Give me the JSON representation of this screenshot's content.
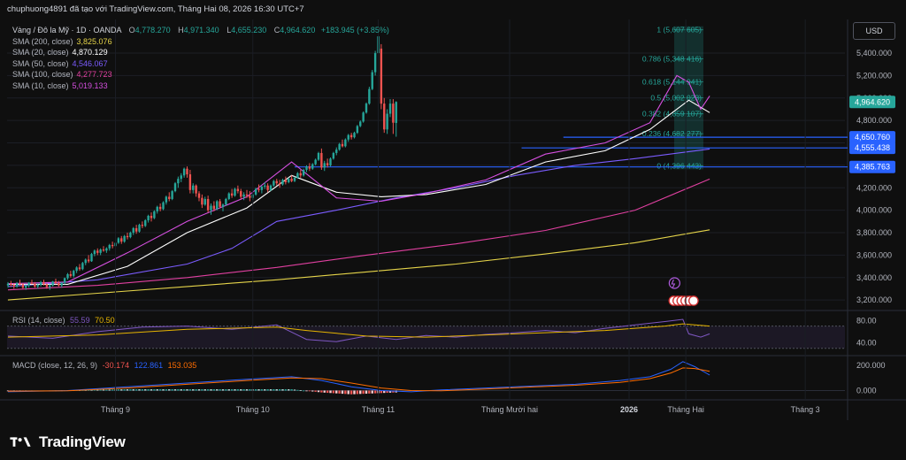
{
  "header": {
    "text": "chuphuong4891 đã tạo với TradingView.com, Tháng Hai 08, 2026 16:30 UTC+7"
  },
  "symbol": {
    "name": "Vàng / Đô la Mỹ · 1D · OANDA",
    "o_label": "O",
    "o": "4,778.270",
    "h_label": "H",
    "h": "4,971.340",
    "l_label": "L",
    "l": "4,655.230",
    "c_label": "C",
    "c": "4,964.620",
    "change": "+183.945 (+3.85%)"
  },
  "sma_legend": [
    {
      "label": "SMA (200, close)",
      "value": "3,825.076",
      "color": "#e5d44a"
    },
    {
      "label": "SMA (20, close)",
      "value": "4,870.129",
      "color": "#ffffff"
    },
    {
      "label": "SMA (50, close)",
      "value": "4,546.067",
      "color": "#7b5cff"
    },
    {
      "label": "SMA (100, close)",
      "value": "4,277.723",
      "color": "#e040a0"
    },
    {
      "label": "SMA (10, close)",
      "value": "5,019.133",
      "color": "#d64fe0"
    }
  ],
  "currency_button": "USD",
  "colors": {
    "up": "#26a69a",
    "down": "#ef5350",
    "fib": "#26a69a",
    "hline": "#2962ff",
    "rsi": "#7e57c2",
    "rsi_ma": "#e5b400",
    "macd": "#2962ff",
    "signal": "#ff6d00"
  },
  "chart_data": {
    "type": "candlestick",
    "title": "Vàng / Đô la Mỹ · 1D · OANDA",
    "x_ticks": [
      "Tháng 9",
      "Tháng 10",
      "Tháng 11",
      "Tháng Mười hai",
      "2026",
      "Tháng Hai",
      "Tháng 3"
    ],
    "y_ticks": [
      "5,400.000",
      "5,200.000",
      "5,000.000",
      "4,800.000",
      "4,600.000",
      "4,400.000",
      "4,200.000",
      "4,000.000",
      "3,800.000",
      "3,600.000",
      "3,400.000",
      "3,200.000"
    ],
    "ylim": [
      3130,
      5700
    ],
    "price_axis_tags": [
      {
        "value": "4,964.620",
        "price": 4964.62,
        "kind": "last"
      },
      {
        "value": "4,650.760",
        "price": 4650.76,
        "kind": "hline"
      },
      {
        "value": "4,555.438",
        "price": 4555.44,
        "kind": "hline"
      },
      {
        "value": "4,385.763",
        "price": 4385.76,
        "kind": "hline"
      }
    ],
    "fib_levels": [
      {
        "label": "1 (5,607.605)",
        "price": 5607.605
      },
      {
        "label": "0.786 (5,348.416)",
        "price": 5348.416
      },
      {
        "label": "0.618 (5,144.941)",
        "price": 5144.941
      },
      {
        "label": "0.5 (5,002.023)",
        "price": 5002.023
      },
      {
        "label": "0.382 (4,859.107)",
        "price": 4859.107
      },
      {
        "label": "0.236 (4,682.277)",
        "price": 4682.277
      },
      {
        "label": "0 (4,396.443)",
        "price": 4396.443
      }
    ],
    "sma200": [
      [
        0,
        3200
      ],
      [
        30,
        3260
      ],
      [
        60,
        3320
      ],
      [
        90,
        3380
      ],
      [
        120,
        3450
      ],
      [
        150,
        3520
      ],
      [
        180,
        3610
      ],
      [
        210,
        3710
      ],
      [
        235,
        3825
      ]
    ],
    "sma100": [
      [
        0,
        3290
      ],
      [
        30,
        3330
      ],
      [
        60,
        3400
      ],
      [
        90,
        3490
      ],
      [
        120,
        3600
      ],
      [
        150,
        3700
      ],
      [
        180,
        3820
      ],
      [
        210,
        4000
      ],
      [
        235,
        4278
      ]
    ],
    "sma50": [
      [
        0,
        3320
      ],
      [
        30,
        3380
      ],
      [
        60,
        3520
      ],
      [
        75,
        3660
      ],
      [
        90,
        3900
      ],
      [
        110,
        4000
      ],
      [
        130,
        4110
      ],
      [
        150,
        4200
      ],
      [
        170,
        4310
      ],
      [
        190,
        4400
      ],
      [
        210,
        4460
      ],
      [
        235,
        4546
      ]
    ],
    "sma20": [
      [
        0,
        3340
      ],
      [
        20,
        3340
      ],
      [
        40,
        3500
      ],
      [
        60,
        3800
      ],
      [
        80,
        4020
      ],
      [
        95,
        4310
      ],
      [
        110,
        4160
      ],
      [
        125,
        4120
      ],
      [
        140,
        4140
      ],
      [
        160,
        4230
      ],
      [
        180,
        4430
      ],
      [
        200,
        4530
      ],
      [
        215,
        4720
      ],
      [
        228,
        4980
      ],
      [
        235,
        4870
      ]
    ],
    "sma10": [
      [
        0,
        3345
      ],
      [
        20,
        3360
      ],
      [
        40,
        3620
      ],
      [
        60,
        3900
      ],
      [
        80,
        4120
      ],
      [
        95,
        4430
      ],
      [
        110,
        4110
      ],
      [
        125,
        4080
      ],
      [
        140,
        4150
      ],
      [
        160,
        4270
      ],
      [
        180,
        4500
      ],
      [
        200,
        4600
      ],
      [
        215,
        4780
      ],
      [
        224,
        5200
      ],
      [
        228,
        5140
      ],
      [
        232,
        4900
      ],
      [
        235,
        5019
      ]
    ],
    "candles": [
      [
        3330,
        3360,
        3310,
        3345
      ],
      [
        3345,
        3370,
        3320,
        3335
      ],
      [
        3335,
        3350,
        3300,
        3320
      ],
      [
        3320,
        3360,
        3310,
        3350
      ],
      [
        3350,
        3380,
        3330,
        3340
      ],
      [
        3340,
        3350,
        3300,
        3310
      ],
      [
        3310,
        3340,
        3290,
        3330
      ],
      [
        3330,
        3360,
        3310,
        3355
      ],
      [
        3355,
        3380,
        3340,
        3345
      ],
      [
        3345,
        3360,
        3310,
        3320
      ],
      [
        3320,
        3350,
        3300,
        3335
      ],
      [
        3335,
        3370,
        3320,
        3360
      ],
      [
        3360,
        3380,
        3330,
        3340
      ],
      [
        3340,
        3350,
        3300,
        3315
      ],
      [
        3315,
        3340,
        3290,
        3330
      ],
      [
        3330,
        3370,
        3320,
        3365
      ],
      [
        3365,
        3390,
        3340,
        3350
      ],
      [
        3350,
        3370,
        3320,
        3330
      ],
      [
        3330,
        3360,
        3310,
        3355
      ],
      [
        3355,
        3400,
        3340,
        3395
      ],
      [
        3395,
        3440,
        3380,
        3430
      ],
      [
        3430,
        3460,
        3400,
        3415
      ],
      [
        3415,
        3470,
        3400,
        3460
      ],
      [
        3460,
        3500,
        3440,
        3490
      ],
      [
        3490,
        3520,
        3460,
        3475
      ],
      [
        3475,
        3540,
        3465,
        3530
      ],
      [
        3530,
        3570,
        3510,
        3560
      ],
      [
        3560,
        3600,
        3530,
        3545
      ],
      [
        3545,
        3620,
        3540,
        3610
      ],
      [
        3610,
        3650,
        3590,
        3640
      ],
      [
        3640,
        3660,
        3600,
        3620
      ],
      [
        3620,
        3660,
        3600,
        3650
      ],
      [
        3650,
        3680,
        3630,
        3640
      ],
      [
        3640,
        3670,
        3620,
        3660
      ],
      [
        3660,
        3700,
        3640,
        3690
      ],
      [
        3690,
        3720,
        3660,
        3680
      ],
      [
        3680,
        3720,
        3670,
        3710
      ],
      [
        3710,
        3760,
        3700,
        3750
      ],
      [
        3750,
        3770,
        3700,
        3720
      ],
      [
        3720,
        3780,
        3710,
        3770
      ],
      [
        3770,
        3800,
        3740,
        3760
      ],
      [
        3760,
        3810,
        3750,
        3800
      ],
      [
        3800,
        3850,
        3780,
        3840
      ],
      [
        3840,
        3870,
        3790,
        3810
      ],
      [
        3810,
        3880,
        3800,
        3870
      ],
      [
        3870,
        3900,
        3840,
        3860
      ],
      [
        3860,
        3920,
        3850,
        3910
      ],
      [
        3910,
        3960,
        3890,
        3950
      ],
      [
        3950,
        3980,
        3900,
        3930
      ],
      [
        3930,
        4000,
        3920,
        3990
      ],
      [
        3990,
        4040,
        3970,
        4030
      ],
      [
        4030,
        4060,
        3990,
        4010
      ],
      [
        4010,
        4080,
        4000,
        4070
      ],
      [
        4070,
        4130,
        4050,
        4120
      ],
      [
        4120,
        4160,
        4080,
        4100
      ],
      [
        4100,
        4180,
        4090,
        4170
      ],
      [
        4170,
        4250,
        4160,
        4240
      ],
      [
        4240,
        4300,
        4200,
        4280
      ],
      [
        4280,
        4330,
        4250,
        4310
      ],
      [
        4310,
        4380,
        4290,
        4370
      ],
      [
        4370,
        4390,
        4290,
        4320
      ],
      [
        4320,
        4360,
        4150,
        4180
      ],
      [
        4180,
        4240,
        4150,
        4220
      ],
      [
        4220,
        4230,
        4120,
        4150
      ],
      [
        4150,
        4170,
        4080,
        4110
      ],
      [
        4110,
        4140,
        4020,
        4050
      ],
      [
        4050,
        4120,
        4040,
        4100
      ],
      [
        4100,
        4130,
        3980,
        4000
      ],
      [
        4000,
        4060,
        3960,
        4040
      ],
      [
        4040,
        4080,
        3990,
        4010
      ],
      [
        4010,
        4090,
        4000,
        4080
      ],
      [
        4080,
        4100,
        4020,
        4030
      ],
      [
        4030,
        4060,
        3990,
        4050
      ],
      [
        4050,
        4110,
        4040,
        4100
      ],
      [
        4100,
        4160,
        4090,
        4150
      ],
      [
        4150,
        4190,
        4110,
        4130
      ],
      [
        4130,
        4200,
        4120,
        4190
      ],
      [
        4190,
        4220,
        4150,
        4170
      ],
      [
        4170,
        4190,
        4100,
        4120
      ],
      [
        4120,
        4160,
        4090,
        4140
      ],
      [
        4140,
        4180,
        4110,
        4130
      ],
      [
        4130,
        4170,
        4080,
        4110
      ],
      [
        4110,
        4150,
        4090,
        4140
      ],
      [
        4140,
        4200,
        4130,
        4190
      ],
      [
        4190,
        4230,
        4160,
        4180
      ],
      [
        4180,
        4220,
        4150,
        4210
      ],
      [
        4210,
        4250,
        4190,
        4220
      ],
      [
        4220,
        4240,
        4160,
        4180
      ],
      [
        4180,
        4230,
        4170,
        4220
      ],
      [
        4220,
        4270,
        4210,
        4260
      ],
      [
        4260,
        4280,
        4220,
        4240
      ],
      [
        4240,
        4270,
        4200,
        4230
      ],
      [
        4230,
        4280,
        4220,
        4270
      ],
      [
        4270,
        4300,
        4230,
        4250
      ],
      [
        4250,
        4290,
        4240,
        4280
      ],
      [
        4280,
        4310,
        4250,
        4260
      ],
      [
        4260,
        4300,
        4250,
        4290
      ],
      [
        4290,
        4340,
        4280,
        4330
      ],
      [
        4330,
        4360,
        4290,
        4310
      ],
      [
        4310,
        4370,
        4300,
        4360
      ],
      [
        4360,
        4400,
        4340,
        4390
      ],
      [
        4390,
        4420,
        4350,
        4370
      ],
      [
        4370,
        4420,
        4360,
        4410
      ],
      [
        4410,
        4460,
        4400,
        4450
      ],
      [
        4450,
        4520,
        4440,
        4510
      ],
      [
        4510,
        4550,
        4360,
        4380
      ],
      [
        4380,
        4440,
        4350,
        4420
      ],
      [
        4420,
        4460,
        4380,
        4400
      ],
      [
        4400,
        4470,
        4390,
        4460
      ],
      [
        4460,
        4520,
        4450,
        4510
      ],
      [
        4510,
        4560,
        4490,
        4540
      ],
      [
        4540,
        4600,
        4530,
        4590
      ],
      [
        4590,
        4630,
        4560,
        4570
      ],
      [
        4570,
        4640,
        4560,
        4630
      ],
      [
        4630,
        4680,
        4610,
        4670
      ],
      [
        4670,
        4690,
        4630,
        4650
      ],
      [
        4650,
        4700,
        4640,
        4690
      ],
      [
        4690,
        4760,
        4680,
        4750
      ],
      [
        4750,
        4800,
        4740,
        4790
      ],
      [
        4790,
        4880,
        4780,
        4870
      ],
      [
        4870,
        4960,
        4860,
        4950
      ],
      [
        4950,
        5100,
        4940,
        5080
      ],
      [
        5080,
        5250,
        5070,
        5230
      ],
      [
        5230,
        5420,
        5200,
        5400
      ],
      [
        5400,
        5600,
        5380,
        5550
      ],
      [
        5440,
        5480,
        4900,
        4950
      ],
      [
        4950,
        5000,
        4690,
        4720
      ],
      [
        4720,
        4900,
        4680,
        4860
      ],
      [
        4860,
        4990,
        4830,
        4950
      ],
      [
        4950,
        4990,
        4680,
        4780
      ],
      [
        4778,
        4971,
        4655,
        4965
      ]
    ],
    "rsi": {
      "label": "RSI (14, close)",
      "value": "55.59",
      "ma_value": "70.50",
      "y_ticks": [
        "80.00",
        "40.00"
      ],
      "line": [
        [
          0,
          52
        ],
        [
          15,
          48
        ],
        [
          30,
          60
        ],
        [
          45,
          68
        ],
        [
          60,
          70
        ],
        [
          75,
          64
        ],
        [
          90,
          72
        ],
        [
          100,
          46
        ],
        [
          110,
          42
        ],
        [
          120,
          52
        ],
        [
          130,
          46
        ],
        [
          140,
          53
        ],
        [
          150,
          50
        ],
        [
          160,
          55
        ],
        [
          170,
          58
        ],
        [
          180,
          62
        ],
        [
          190,
          58
        ],
        [
          200,
          66
        ],
        [
          210,
          72
        ],
        [
          220,
          78
        ],
        [
          226,
          82
        ],
        [
          228,
          56
        ],
        [
          232,
          50
        ],
        [
          235,
          56
        ]
      ],
      "ma": [
        [
          0,
          50
        ],
        [
          30,
          54
        ],
        [
          60,
          64
        ],
        [
          90,
          68
        ],
        [
          100,
          62
        ],
        [
          120,
          52
        ],
        [
          140,
          50
        ],
        [
          160,
          54
        ],
        [
          180,
          58
        ],
        [
          200,
          62
        ],
        [
          220,
          70
        ],
        [
          226,
          74
        ],
        [
          235,
          70
        ]
      ]
    },
    "macd": {
      "label": "MACD (close, 12, 26, 9)",
      "hist": "-30.174",
      "macd": "122.861",
      "signal": "153.035",
      "y_ticks": [
        "200.000",
        "0.000"
      ],
      "macd_line": [
        [
          0,
          -10
        ],
        [
          20,
          0
        ],
        [
          40,
          30
        ],
        [
          60,
          60
        ],
        [
          80,
          90
        ],
        [
          95,
          110
        ],
        [
          105,
          80
        ],
        [
          115,
          30
        ],
        [
          125,
          0
        ],
        [
          135,
          -10
        ],
        [
          145,
          5
        ],
        [
          160,
          20
        ],
        [
          175,
          35
        ],
        [
          190,
          50
        ],
        [
          205,
          80
        ],
        [
          215,
          110
        ],
        [
          222,
          170
        ],
        [
          226,
          230
        ],
        [
          230,
          190
        ],
        [
          235,
          123
        ]
      ],
      "signal_line": [
        [
          0,
          -5
        ],
        [
          20,
          -2
        ],
        [
          40,
          20
        ],
        [
          60,
          50
        ],
        [
          80,
          80
        ],
        [
          95,
          100
        ],
        [
          105,
          95
        ],
        [
          115,
          60
        ],
        [
          125,
          20
        ],
        [
          135,
          0
        ],
        [
          145,
          -2
        ],
        [
          160,
          12
        ],
        [
          175,
          28
        ],
        [
          190,
          42
        ],
        [
          205,
          65
        ],
        [
          215,
          95
        ],
        [
          222,
          140
        ],
        [
          226,
          180
        ],
        [
          230,
          175
        ],
        [
          235,
          153
        ]
      ]
    }
  },
  "footer": {
    "brand": "TradingView"
  }
}
